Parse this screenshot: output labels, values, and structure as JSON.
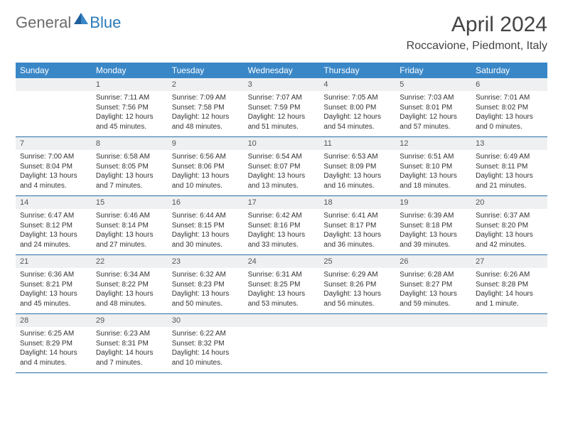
{
  "logo": {
    "general": "General",
    "blue": "Blue"
  },
  "title": "April 2024",
  "location": "Roccavione, Piedmont, Italy",
  "colors": {
    "header_bg": "#3a87c7",
    "header_text": "#ffffff",
    "daynum_bg": "#eef0f1",
    "border": "#2a6fa5",
    "logo_gray": "#6a6a6a",
    "logo_blue": "#2a7ab8"
  },
  "weekdays": [
    "Sunday",
    "Monday",
    "Tuesday",
    "Wednesday",
    "Thursday",
    "Friday",
    "Saturday"
  ],
  "weeks": [
    [
      {
        "num": "",
        "sunrise": "",
        "sunset": "",
        "daylight": ""
      },
      {
        "num": "1",
        "sunrise": "Sunrise: 7:11 AM",
        "sunset": "Sunset: 7:56 PM",
        "daylight": "Daylight: 12 hours and 45 minutes."
      },
      {
        "num": "2",
        "sunrise": "Sunrise: 7:09 AM",
        "sunset": "Sunset: 7:58 PM",
        "daylight": "Daylight: 12 hours and 48 minutes."
      },
      {
        "num": "3",
        "sunrise": "Sunrise: 7:07 AM",
        "sunset": "Sunset: 7:59 PM",
        "daylight": "Daylight: 12 hours and 51 minutes."
      },
      {
        "num": "4",
        "sunrise": "Sunrise: 7:05 AM",
        "sunset": "Sunset: 8:00 PM",
        "daylight": "Daylight: 12 hours and 54 minutes."
      },
      {
        "num": "5",
        "sunrise": "Sunrise: 7:03 AM",
        "sunset": "Sunset: 8:01 PM",
        "daylight": "Daylight: 12 hours and 57 minutes."
      },
      {
        "num": "6",
        "sunrise": "Sunrise: 7:01 AM",
        "sunset": "Sunset: 8:02 PM",
        "daylight": "Daylight: 13 hours and 0 minutes."
      }
    ],
    [
      {
        "num": "7",
        "sunrise": "Sunrise: 7:00 AM",
        "sunset": "Sunset: 8:04 PM",
        "daylight": "Daylight: 13 hours and 4 minutes."
      },
      {
        "num": "8",
        "sunrise": "Sunrise: 6:58 AM",
        "sunset": "Sunset: 8:05 PM",
        "daylight": "Daylight: 13 hours and 7 minutes."
      },
      {
        "num": "9",
        "sunrise": "Sunrise: 6:56 AM",
        "sunset": "Sunset: 8:06 PM",
        "daylight": "Daylight: 13 hours and 10 minutes."
      },
      {
        "num": "10",
        "sunrise": "Sunrise: 6:54 AM",
        "sunset": "Sunset: 8:07 PM",
        "daylight": "Daylight: 13 hours and 13 minutes."
      },
      {
        "num": "11",
        "sunrise": "Sunrise: 6:53 AM",
        "sunset": "Sunset: 8:09 PM",
        "daylight": "Daylight: 13 hours and 16 minutes."
      },
      {
        "num": "12",
        "sunrise": "Sunrise: 6:51 AM",
        "sunset": "Sunset: 8:10 PM",
        "daylight": "Daylight: 13 hours and 18 minutes."
      },
      {
        "num": "13",
        "sunrise": "Sunrise: 6:49 AM",
        "sunset": "Sunset: 8:11 PM",
        "daylight": "Daylight: 13 hours and 21 minutes."
      }
    ],
    [
      {
        "num": "14",
        "sunrise": "Sunrise: 6:47 AM",
        "sunset": "Sunset: 8:12 PM",
        "daylight": "Daylight: 13 hours and 24 minutes."
      },
      {
        "num": "15",
        "sunrise": "Sunrise: 6:46 AM",
        "sunset": "Sunset: 8:14 PM",
        "daylight": "Daylight: 13 hours and 27 minutes."
      },
      {
        "num": "16",
        "sunrise": "Sunrise: 6:44 AM",
        "sunset": "Sunset: 8:15 PM",
        "daylight": "Daylight: 13 hours and 30 minutes."
      },
      {
        "num": "17",
        "sunrise": "Sunrise: 6:42 AM",
        "sunset": "Sunset: 8:16 PM",
        "daylight": "Daylight: 13 hours and 33 minutes."
      },
      {
        "num": "18",
        "sunrise": "Sunrise: 6:41 AM",
        "sunset": "Sunset: 8:17 PM",
        "daylight": "Daylight: 13 hours and 36 minutes."
      },
      {
        "num": "19",
        "sunrise": "Sunrise: 6:39 AM",
        "sunset": "Sunset: 8:18 PM",
        "daylight": "Daylight: 13 hours and 39 minutes."
      },
      {
        "num": "20",
        "sunrise": "Sunrise: 6:37 AM",
        "sunset": "Sunset: 8:20 PM",
        "daylight": "Daylight: 13 hours and 42 minutes."
      }
    ],
    [
      {
        "num": "21",
        "sunrise": "Sunrise: 6:36 AM",
        "sunset": "Sunset: 8:21 PM",
        "daylight": "Daylight: 13 hours and 45 minutes."
      },
      {
        "num": "22",
        "sunrise": "Sunrise: 6:34 AM",
        "sunset": "Sunset: 8:22 PM",
        "daylight": "Daylight: 13 hours and 48 minutes."
      },
      {
        "num": "23",
        "sunrise": "Sunrise: 6:32 AM",
        "sunset": "Sunset: 8:23 PM",
        "daylight": "Daylight: 13 hours and 50 minutes."
      },
      {
        "num": "24",
        "sunrise": "Sunrise: 6:31 AM",
        "sunset": "Sunset: 8:25 PM",
        "daylight": "Daylight: 13 hours and 53 minutes."
      },
      {
        "num": "25",
        "sunrise": "Sunrise: 6:29 AM",
        "sunset": "Sunset: 8:26 PM",
        "daylight": "Daylight: 13 hours and 56 minutes."
      },
      {
        "num": "26",
        "sunrise": "Sunrise: 6:28 AM",
        "sunset": "Sunset: 8:27 PM",
        "daylight": "Daylight: 13 hours and 59 minutes."
      },
      {
        "num": "27",
        "sunrise": "Sunrise: 6:26 AM",
        "sunset": "Sunset: 8:28 PM",
        "daylight": "Daylight: 14 hours and 1 minute."
      }
    ],
    [
      {
        "num": "28",
        "sunrise": "Sunrise: 6:25 AM",
        "sunset": "Sunset: 8:29 PM",
        "daylight": "Daylight: 14 hours and 4 minutes."
      },
      {
        "num": "29",
        "sunrise": "Sunrise: 6:23 AM",
        "sunset": "Sunset: 8:31 PM",
        "daylight": "Daylight: 14 hours and 7 minutes."
      },
      {
        "num": "30",
        "sunrise": "Sunrise: 6:22 AM",
        "sunset": "Sunset: 8:32 PM",
        "daylight": "Daylight: 14 hours and 10 minutes."
      },
      {
        "num": "",
        "sunrise": "",
        "sunset": "",
        "daylight": ""
      },
      {
        "num": "",
        "sunrise": "",
        "sunset": "",
        "daylight": ""
      },
      {
        "num": "",
        "sunrise": "",
        "sunset": "",
        "daylight": ""
      },
      {
        "num": "",
        "sunrise": "",
        "sunset": "",
        "daylight": ""
      }
    ]
  ]
}
